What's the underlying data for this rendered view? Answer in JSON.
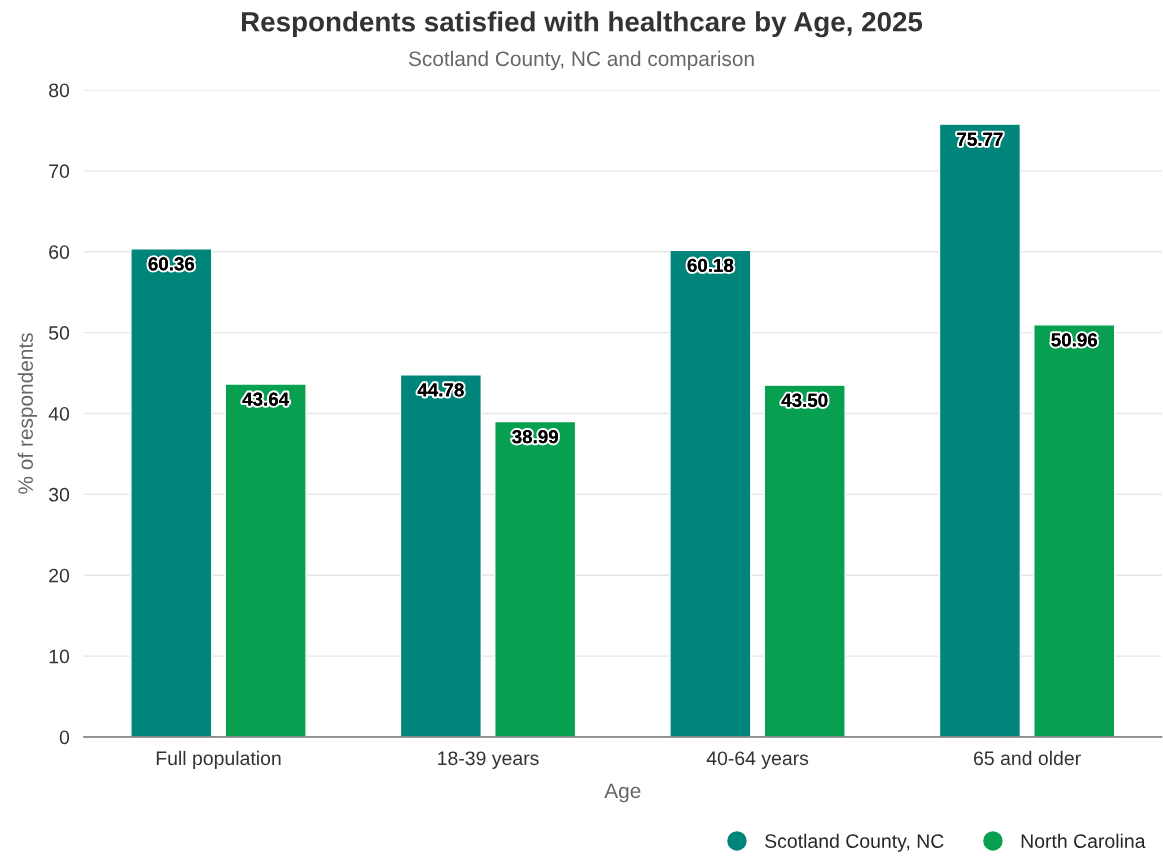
{
  "chart_data": {
    "type": "bar",
    "title": "Respondents satisfied with healthcare by Age, 2025",
    "subtitle": "Scotland County, NC and comparison",
    "xlabel": "Age",
    "ylabel": "% of respondents",
    "categories": [
      "Full population",
      "18-39 years",
      "40-64 years",
      "65 and older"
    ],
    "series": [
      {
        "name": "Scotland County, NC",
        "color": "#00857a",
        "values": [
          60.36,
          44.78,
          60.18,
          75.77
        ],
        "value_labels": [
          "60.36",
          "44.78",
          "60.18",
          "75.77"
        ]
      },
      {
        "name": "North Carolina",
        "color": "#07a050",
        "values": [
          43.64,
          38.99,
          43.5,
          50.96
        ],
        "value_labels": [
          "43.64",
          "38.99",
          "43.50",
          "50.96"
        ]
      }
    ],
    "ylim": [
      0,
      80
    ],
    "yticks": [
      0,
      10,
      20,
      30,
      40,
      50,
      60,
      70,
      80
    ],
    "grid": "y",
    "legend": "bottom right"
  }
}
